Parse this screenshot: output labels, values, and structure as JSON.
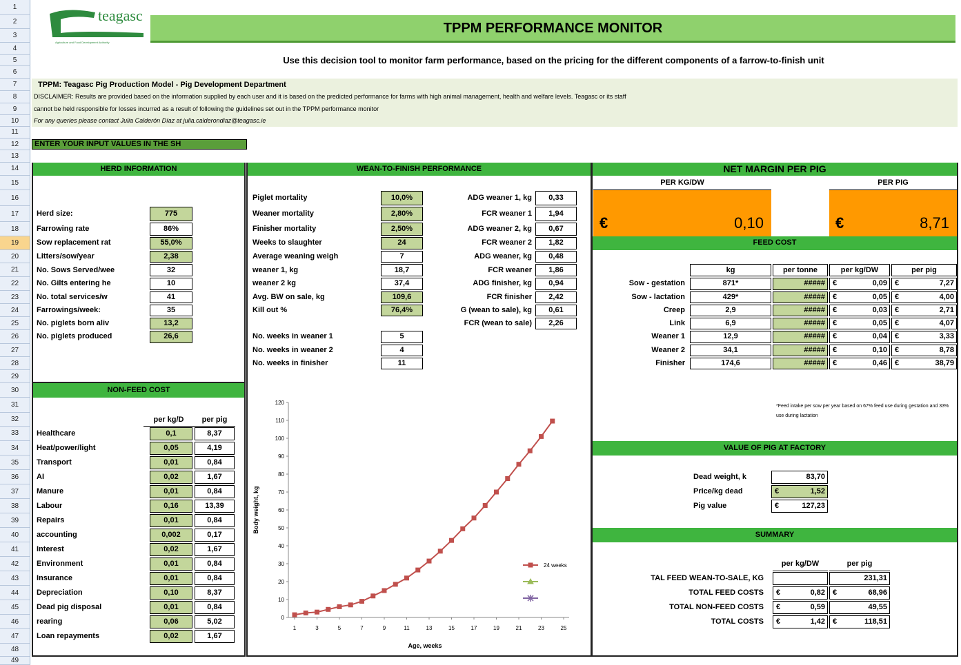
{
  "row_numbers": [
    1,
    2,
    3,
    4,
    5,
    6,
    7,
    8,
    9,
    10,
    11,
    12,
    13,
    14,
    15,
    16,
    17,
    18,
    19,
    20,
    21,
    22,
    23,
    24,
    25,
    26,
    27,
    28,
    29,
    30,
    31,
    32,
    33,
    34,
    35,
    36,
    37,
    38,
    39,
    40,
    41,
    42,
    43,
    44,
    45,
    46,
    47,
    48,
    49
  ],
  "logo": {
    "name": "teagasc",
    "tagline": "Agriculture and Food Development Authority"
  },
  "header": {
    "title": "TPPM PERFORMANCE MONITOR",
    "subtitle": "Use this decision tool to monitor farm performance, based on the pricing for the different components of a  farrow-to-finish unit"
  },
  "notes": {
    "model": "TPPM: Teagasc Pig Production Model - Pig Development Department",
    "disclaimer_1": "DISCLAIMER: Results are provided based on the information supplied by each user and it is based on the predicted performance for farms with high animal management, health and welfare levels. Teagasc or its staff",
    "disclaimer_2": "cannot be held responsible for losses incurred as a result of following the guidelines set out in the TPPM performance monitor",
    "contact": "For any queries please contact Julia Calderón Díaz at julia.calderondiaz@teagasc.ie"
  },
  "instruction": "ENTER YOUR INPUT VALUES IN THE SH",
  "herd_information": {
    "title": "HERD INFORMATION",
    "rows": [
      {
        "label": "Herd size:",
        "value": "775"
      },
      {
        "label": "Farrowing rate",
        "value": "86%"
      },
      {
        "label": "Sow replacement rat",
        "value": "55,0%"
      },
      {
        "label": "Litters/sow/year",
        "value": "2,38"
      },
      {
        "label": "No. Sows Served/wee",
        "value": "32"
      },
      {
        "label": "No. Gilts entering he",
        "value": "10"
      },
      {
        "label": "No. total services/w",
        "value": "41"
      },
      {
        "label": "Farrowings/week:",
        "value": "35"
      },
      {
        "label": "No. piglets born aliv",
        "value": "13,2"
      },
      {
        "label": "No. piglets produced",
        "value": "26,6"
      }
    ]
  },
  "wean_to_finish": {
    "title": "WEAN-TO-FINISH PERFORMANCE",
    "left": [
      {
        "label": "Piglet mortality",
        "value": "10,0%"
      },
      {
        "label": "Weaner mortality",
        "value": "2,80%"
      },
      {
        "label": "Finisher mortality",
        "value": "2,50%"
      },
      {
        "label": "Weeks to slaughter",
        "value": "24"
      },
      {
        "label": "Average weaning weigh",
        "value": "7"
      },
      {
        "label": "weaner 1, kg",
        "value": "18,7"
      },
      {
        "label": "weaner 2  kg",
        "value": "37,4"
      },
      {
        "label": "Avg. BW on sale, kg",
        "value": "109,6"
      },
      {
        "label": "Kill out %",
        "value": "76,4%"
      }
    ],
    "right": [
      {
        "label": "ADG weaner 1, kg",
        "value": "0,33"
      },
      {
        "label": "FCR weaner 1",
        "value": "1,94"
      },
      {
        "label": "ADG weaner 2, kg",
        "value": "0,67"
      },
      {
        "label": "FCR weaner 2",
        "value": "1,82"
      },
      {
        "label": "ADG weaner, kg",
        "value": "0,48"
      },
      {
        "label": "FCR weaner",
        "value": "1,86"
      },
      {
        "label": "ADG finisher, kg",
        "value": "0,94"
      },
      {
        "label": "FCR finisher",
        "value": "2,42"
      },
      {
        "label": "G (wean to sale), kg",
        "value": "0,61"
      },
      {
        "label": "FCR (wean to sale)",
        "value": "2,26"
      }
    ],
    "weeks": [
      {
        "label": "No. weeks in weaner 1",
        "value": "5"
      },
      {
        "label": "No. weeks in weaner 2",
        "value": "4"
      },
      {
        "label": "No. weeks in finisher",
        "value": "11"
      }
    ]
  },
  "net_margin": {
    "title": "NET MARGIN PER PIG",
    "per_kg": {
      "label": "PER KG/DW",
      "currency": "€",
      "value": "0,10"
    },
    "per_pig": {
      "label": "PER PIG",
      "currency": "€",
      "value": "8,71"
    }
  },
  "feed_cost": {
    "title": "FEED COST",
    "currency": "€",
    "headers": [
      "kg",
      "per tonne",
      "per kg/DW",
      "per pig"
    ],
    "rows": [
      {
        "label": "Sow - gestation",
        "kg": "871*",
        "per_tonne": "#####",
        "per_kg": "0,09",
        "per_pig": "7,27"
      },
      {
        "label": "Sow - lactation",
        "kg": "429*",
        "per_tonne": "#####",
        "per_kg": "0,05",
        "per_pig": "4,00"
      },
      {
        "label": "Creep",
        "kg": "2,9",
        "per_tonne": "#####",
        "per_kg": "0,03",
        "per_pig": "2,71"
      },
      {
        "label": "Link",
        "kg": "6,9",
        "per_tonne": "#####",
        "per_kg": "0,05",
        "per_pig": "4,07"
      },
      {
        "label": "Weaner 1",
        "kg": "12,9",
        "per_tonne": "#####",
        "per_kg": "0,04",
        "per_pig": "3,33"
      },
      {
        "label": "Weaner 2",
        "kg": "34,1",
        "per_tonne": "#####",
        "per_kg": "0,10",
        "per_pig": "8,78"
      },
      {
        "label": "Finisher",
        "kg": "174,6",
        "per_tonne": "#####",
        "per_kg": "0,46",
        "per_pig": "38,79"
      }
    ],
    "footnote": "*Feed intake per sow per year based on 67% feed use during gestation and 33% use during lactation"
  },
  "non_feed_cost": {
    "title": "NON-FEED COST",
    "headers": [
      "per kg/D",
      "per pig"
    ],
    "rows": [
      {
        "label": "Healthcare",
        "per_kg": "0,1",
        "per_pig": "8,37"
      },
      {
        "label": "Heat/power/light",
        "per_kg": "0,05",
        "per_pig": "4,19"
      },
      {
        "label": "Transport",
        "per_kg": "0,01",
        "per_pig": "0,84"
      },
      {
        "label": "AI",
        "per_kg": "0,02",
        "per_pig": "1,67"
      },
      {
        "label": "Manure",
        "per_kg": "0,01",
        "per_pig": "0,84"
      },
      {
        "label": "Labour",
        "per_kg": "0,16",
        "per_pig": "13,39"
      },
      {
        "label": "Repairs",
        "per_kg": "0,01",
        "per_pig": "0,84"
      },
      {
        "label": "accounting",
        "per_kg": "0,002",
        "per_pig": "0,17"
      },
      {
        "label": "Interest",
        "per_kg": "0,02",
        "per_pig": "1,67"
      },
      {
        "label": "Environment",
        "per_kg": "0,01",
        "per_pig": "0,84"
      },
      {
        "label": "Insurance",
        "per_kg": "0,01",
        "per_pig": "0,84"
      },
      {
        "label": "Depreciation",
        "per_kg": "0,10",
        "per_pig": "8,37"
      },
      {
        "label": "Dead pig disposal",
        "per_kg": "0,01",
        "per_pig": "0,84"
      },
      {
        "label": "rearing",
        "per_kg": "0,06",
        "per_pig": "5,02"
      },
      {
        "label": "Loan repayments",
        "per_kg": "0,02",
        "per_pig": "1,67"
      }
    ]
  },
  "value_of_pig": {
    "title": "VALUE OF PIG AT FACTORY",
    "rows": [
      {
        "label": "Dead weight, k",
        "value": "83,70"
      },
      {
        "label": "Price/kg dead",
        "currency": "€",
        "value": "1,52"
      },
      {
        "label": "Pig value",
        "currency": "€",
        "value": "127,23"
      }
    ]
  },
  "summary": {
    "title": "SUMMARY",
    "headers": [
      "per kg/DW",
      "per pig"
    ],
    "rows": [
      {
        "label": "TAL FEED WEAN-TO-SALE, KG",
        "per_pig": "231,31"
      },
      {
        "label": "TOTAL FEED COSTS",
        "per_kg_currency": "€",
        "per_kg": "0,82",
        "per_pig_currency": "€",
        "per_pig": "68,96"
      },
      {
        "label": "TOTAL NON-FEED COSTS",
        "per_kg_currency": "€",
        "per_kg": "0,59",
        "per_pig": "49,55"
      },
      {
        "label": "TOTAL COSTS",
        "per_kg_currency": "€",
        "per_kg": "1,42",
        "per_pig_currency": "€",
        "per_pig": "118,51"
      }
    ]
  },
  "chart_data": {
    "type": "line",
    "x_label": "Age, weeks",
    "y_label": "Body weight, kg",
    "xlim": [
      1,
      25
    ],
    "xticks": [
      1,
      3,
      5,
      7,
      9,
      11,
      13,
      15,
      17,
      19,
      21,
      23,
      25
    ],
    "ylim": [
      0,
      120
    ],
    "yticks": [
      0,
      10,
      20,
      30,
      40,
      50,
      60,
      70,
      80,
      90,
      100,
      110,
      120
    ],
    "series": [
      {
        "name": "24 weeks",
        "color": "#c0504d",
        "marker": "square",
        "x": [
          1,
          2,
          3,
          4,
          5,
          6,
          7,
          8,
          9,
          10,
          11,
          12,
          13,
          14,
          15,
          16,
          17,
          18,
          19,
          20,
          21,
          22,
          23,
          24
        ],
        "values": [
          1.5,
          2.5,
          3,
          4.5,
          6,
          7,
          9,
          12,
          15,
          18.5,
          22,
          26.5,
          31.5,
          37,
          43,
          49.5,
          55.5,
          62.5,
          70,
          77.5,
          85.5,
          93,
          101,
          109.6
        ]
      },
      {
        "name": null,
        "color": "#9bbb59",
        "marker": "triangle",
        "x": [],
        "values": []
      },
      {
        "name": null,
        "color": "#8064a2",
        "marker": "star",
        "x": [],
        "values": []
      }
    ]
  }
}
